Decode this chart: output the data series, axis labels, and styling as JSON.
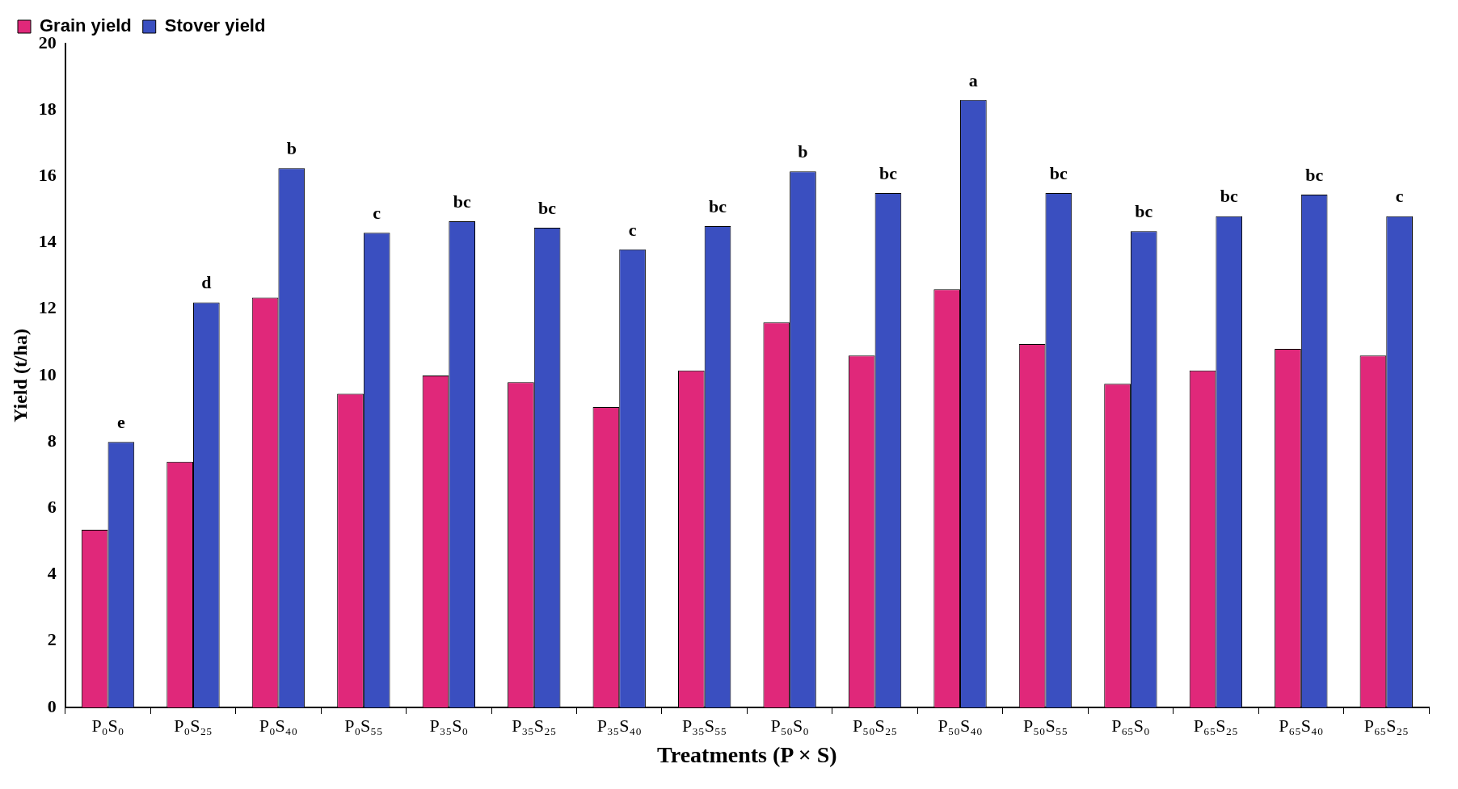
{
  "chart_data": {
    "type": "bar",
    "xlabel": "Treatments (P × S)",
    "ylabel": "Yield (t/ha)",
    "categories": [
      "P₀S₀",
      "P₀S₂₅",
      "P₀S₄₀",
      "P₀S₅₅",
      "P₃₅S₀",
      "P₃₅S₂₅",
      "P₃₅S₄₀",
      "P₃₅S₅₅",
      "P₅₀S₀",
      "P₅₀S₂₅",
      "P₅₀S₄₀",
      "P₅₀S₅₅",
      "P₆₅S₀",
      "P₆₅S₂₅",
      "P₆₅S₄₀",
      "P₆₅S₂₅"
    ],
    "series": [
      {
        "name": "Grain yield",
        "color": "#e0287a",
        "values": [
          5.35,
          7.4,
          12.35,
          9.45,
          10.0,
          9.8,
          9.05,
          10.15,
          11.6,
          10.6,
          12.6,
          10.95,
          9.75,
          10.15,
          10.8,
          10.6
        ]
      },
      {
        "name": "Stover yield",
        "color": "#3a4fc0",
        "values": [
          8.0,
          12.2,
          16.25,
          14.3,
          14.65,
          14.45,
          13.8,
          14.5,
          16.15,
          15.5,
          18.3,
          15.5,
          14.35,
          14.8,
          15.45,
          14.8
        ]
      }
    ],
    "ylim": [
      0,
      20
    ],
    "yticks": [
      0,
      2,
      4,
      6,
      8,
      10,
      12,
      14,
      16,
      18,
      20
    ],
    "grid": false,
    "legend": "top left",
    "annotations": [
      {
        "text": "e",
        "x": "P₀S₀",
        "y": 8.0
      },
      {
        "text": "d",
        "x": "P₀S₂₅",
        "y": 12.2
      },
      {
        "text": "b",
        "x": "P₀S₄₀",
        "y": 16.25
      },
      {
        "text": "c",
        "x": "P₀S₅₅",
        "y": 14.3
      },
      {
        "text": "bc",
        "x": "P₃₅S₀",
        "y": 14.65
      },
      {
        "text": "bc",
        "x": "P₃₅S₂₅",
        "y": 14.45
      },
      {
        "text": "c",
        "x": "P₃₅S₄₀",
        "y": 13.8
      },
      {
        "text": "bc",
        "x": "P₃₅S₅₅",
        "y": 14.5
      },
      {
        "text": "b",
        "x": "P₅₀S₀",
        "y": 16.15
      },
      {
        "text": "bc",
        "x": "P₅₀S₂₅",
        "y": 15.5
      },
      {
        "text": "a",
        "x": "P₅₀S₄₀",
        "y": 18.3
      },
      {
        "text": "bc",
        "x": "P₅₀S₅₅",
        "y": 15.5
      },
      {
        "text": "bc",
        "x": "P₆₅S₀",
        "y": 14.35
      },
      {
        "text": "bc",
        "x": "P₆₅S₂₅",
        "y": 14.8
      },
      {
        "text": "bc",
        "x": "P₆₅S₄₀",
        "y": 15.45
      },
      "c"
    ]
  }
}
